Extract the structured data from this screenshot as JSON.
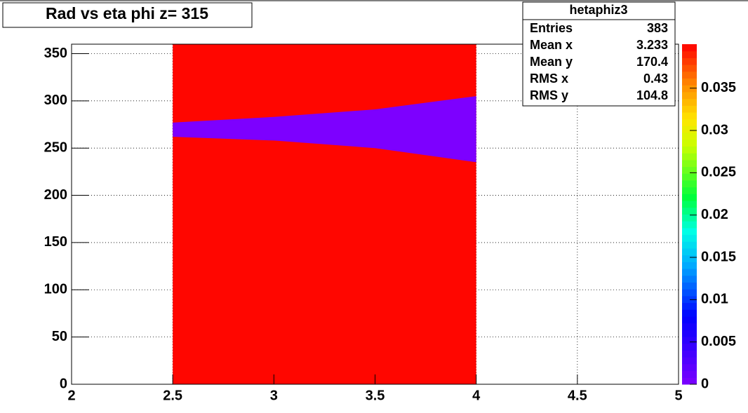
{
  "chart_data": {
    "type": "heatmap",
    "title": "Rad vs eta phi z= 315",
    "xlim": [
      2,
      5
    ],
    "xticks": [
      2,
      2.5,
      3,
      3.5,
      4,
      4.5,
      5
    ],
    "ylim": [
      0,
      360
    ],
    "yticks": [
      0,
      50,
      100,
      150,
      200,
      250,
      300,
      350
    ],
    "zlim": [
      0,
      0.0402
    ],
    "zticks": [
      0,
      0.005,
      0.01,
      0.015,
      0.02,
      0.025,
      0.03,
      0.035
    ],
    "grid": true,
    "fill": {
      "x": [
        2.5,
        4
      ],
      "y": [
        0,
        360
      ],
      "value": 0.04
    },
    "band": {
      "x": [
        2.5,
        3,
        3.5,
        4
      ],
      "upper": [
        277,
        283,
        291,
        305
      ],
      "lower": [
        262,
        258,
        250,
        235
      ],
      "value": 0
    },
    "stats": {
      "title": "hetaphiz3",
      "rows": [
        {
          "label": "Entries",
          "value": 383
        },
        {
          "label": "Mean x",
          "value": 3.233
        },
        {
          "label": "Mean y",
          "value": 170.4
        },
        {
          "label": "RMS x",
          "value": 0.43
        },
        {
          "label": "RMS y",
          "value": 104.8
        }
      ]
    }
  }
}
